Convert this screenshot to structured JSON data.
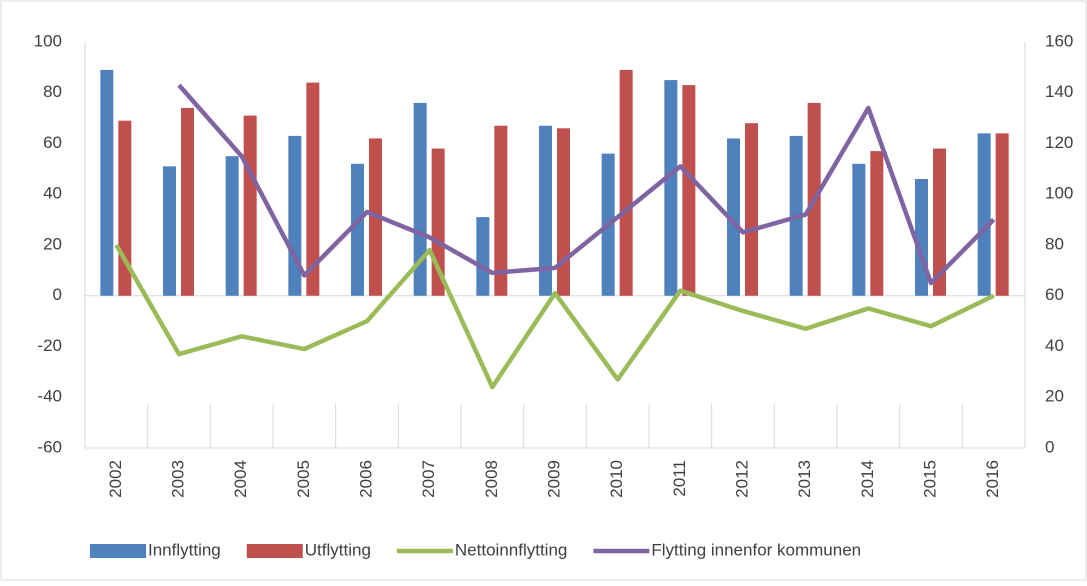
{
  "chart_data": {
    "type": "bar_line",
    "categories": [
      "2002",
      "2003",
      "2004",
      "2005",
      "2006",
      "2007",
      "2008",
      "2009",
      "2010",
      "2011",
      "2012",
      "2013",
      "2014",
      "2015",
      "2016"
    ],
    "series": [
      {
        "name": "Innflytting",
        "type": "bar",
        "color": "#4f81bd",
        "values": [
          89,
          51,
          55,
          63,
          52,
          76,
          31,
          67,
          56,
          85,
          62,
          63,
          52,
          46,
          64
        ]
      },
      {
        "name": "Utflytting",
        "type": "bar",
        "color": "#c0504d",
        "values": [
          69,
          74,
          71,
          84,
          62,
          58,
          67,
          66,
          89,
          83,
          68,
          76,
          57,
          58,
          64
        ]
      },
      {
        "name": "Nettoinnflytting",
        "type": "line",
        "color": "#9bbb59",
        "values": [
          20,
          -23,
          -16,
          -21,
          -10,
          18,
          -36,
          1,
          -33,
          2,
          -6,
          -13,
          -5,
          -12,
          0
        ]
      },
      {
        "name": "Flytting innenfor kommunen",
        "type": "line",
        "axis": "y2",
        "color": "#8064a2",
        "values": [
          null,
          143,
          115,
          68,
          93,
          83,
          69,
          71,
          91,
          111,
          85,
          92,
          134,
          65,
          90
        ]
      }
    ],
    "ylim": [
      -60,
      100
    ],
    "yticks": [
      -60,
      -40,
      -20,
      0,
      20,
      40,
      60,
      80,
      100
    ],
    "y2lim": [
      0,
      160
    ],
    "y2ticks": [
      0,
      20,
      40,
      60,
      80,
      100,
      120,
      140,
      160
    ],
    "legend": "bottom"
  }
}
